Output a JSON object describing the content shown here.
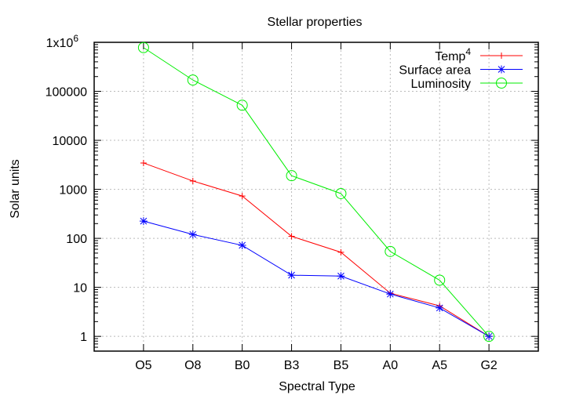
{
  "chart_data": {
    "type": "line",
    "title": "Stellar properties",
    "xlabel": "Spectral Type",
    "ylabel": "Solar units",
    "yscale": "log",
    "ylim": [
      0.5,
      1000000
    ],
    "grid": true,
    "legend_position": "top-right",
    "categories": [
      "O5",
      "O8",
      "B0",
      "B3",
      "B5",
      "A0",
      "A5",
      "G2"
    ],
    "ytick_labels": [
      {
        "value": 1,
        "label": "1"
      },
      {
        "value": 10,
        "label": "10"
      },
      {
        "value": 100,
        "label": "100"
      },
      {
        "value": 1000,
        "label": "1000"
      },
      {
        "value": 10000,
        "label": "10000"
      },
      {
        "value": 100000,
        "label": "100000"
      },
      {
        "value": 1000000,
        "label": "1x10",
        "sup": "6"
      }
    ],
    "series": [
      {
        "name": "Temp",
        "name_sup": "4",
        "color": "#ff0000",
        "marker": "plus",
        "values": [
          3450,
          1480,
          730,
          110,
          52,
          7.6,
          4.2,
          1
        ]
      },
      {
        "name": "Surface area",
        "color": "#0000ff",
        "marker": "star",
        "values": [
          225,
          120,
          72,
          17.7,
          17,
          7.3,
          3.8,
          1
        ]
      },
      {
        "name": "Luminosity",
        "color": "#00ee00",
        "marker": "circle",
        "values": [
          780000,
          170000,
          52000,
          1900,
          820,
          54,
          14,
          1
        ]
      }
    ]
  }
}
